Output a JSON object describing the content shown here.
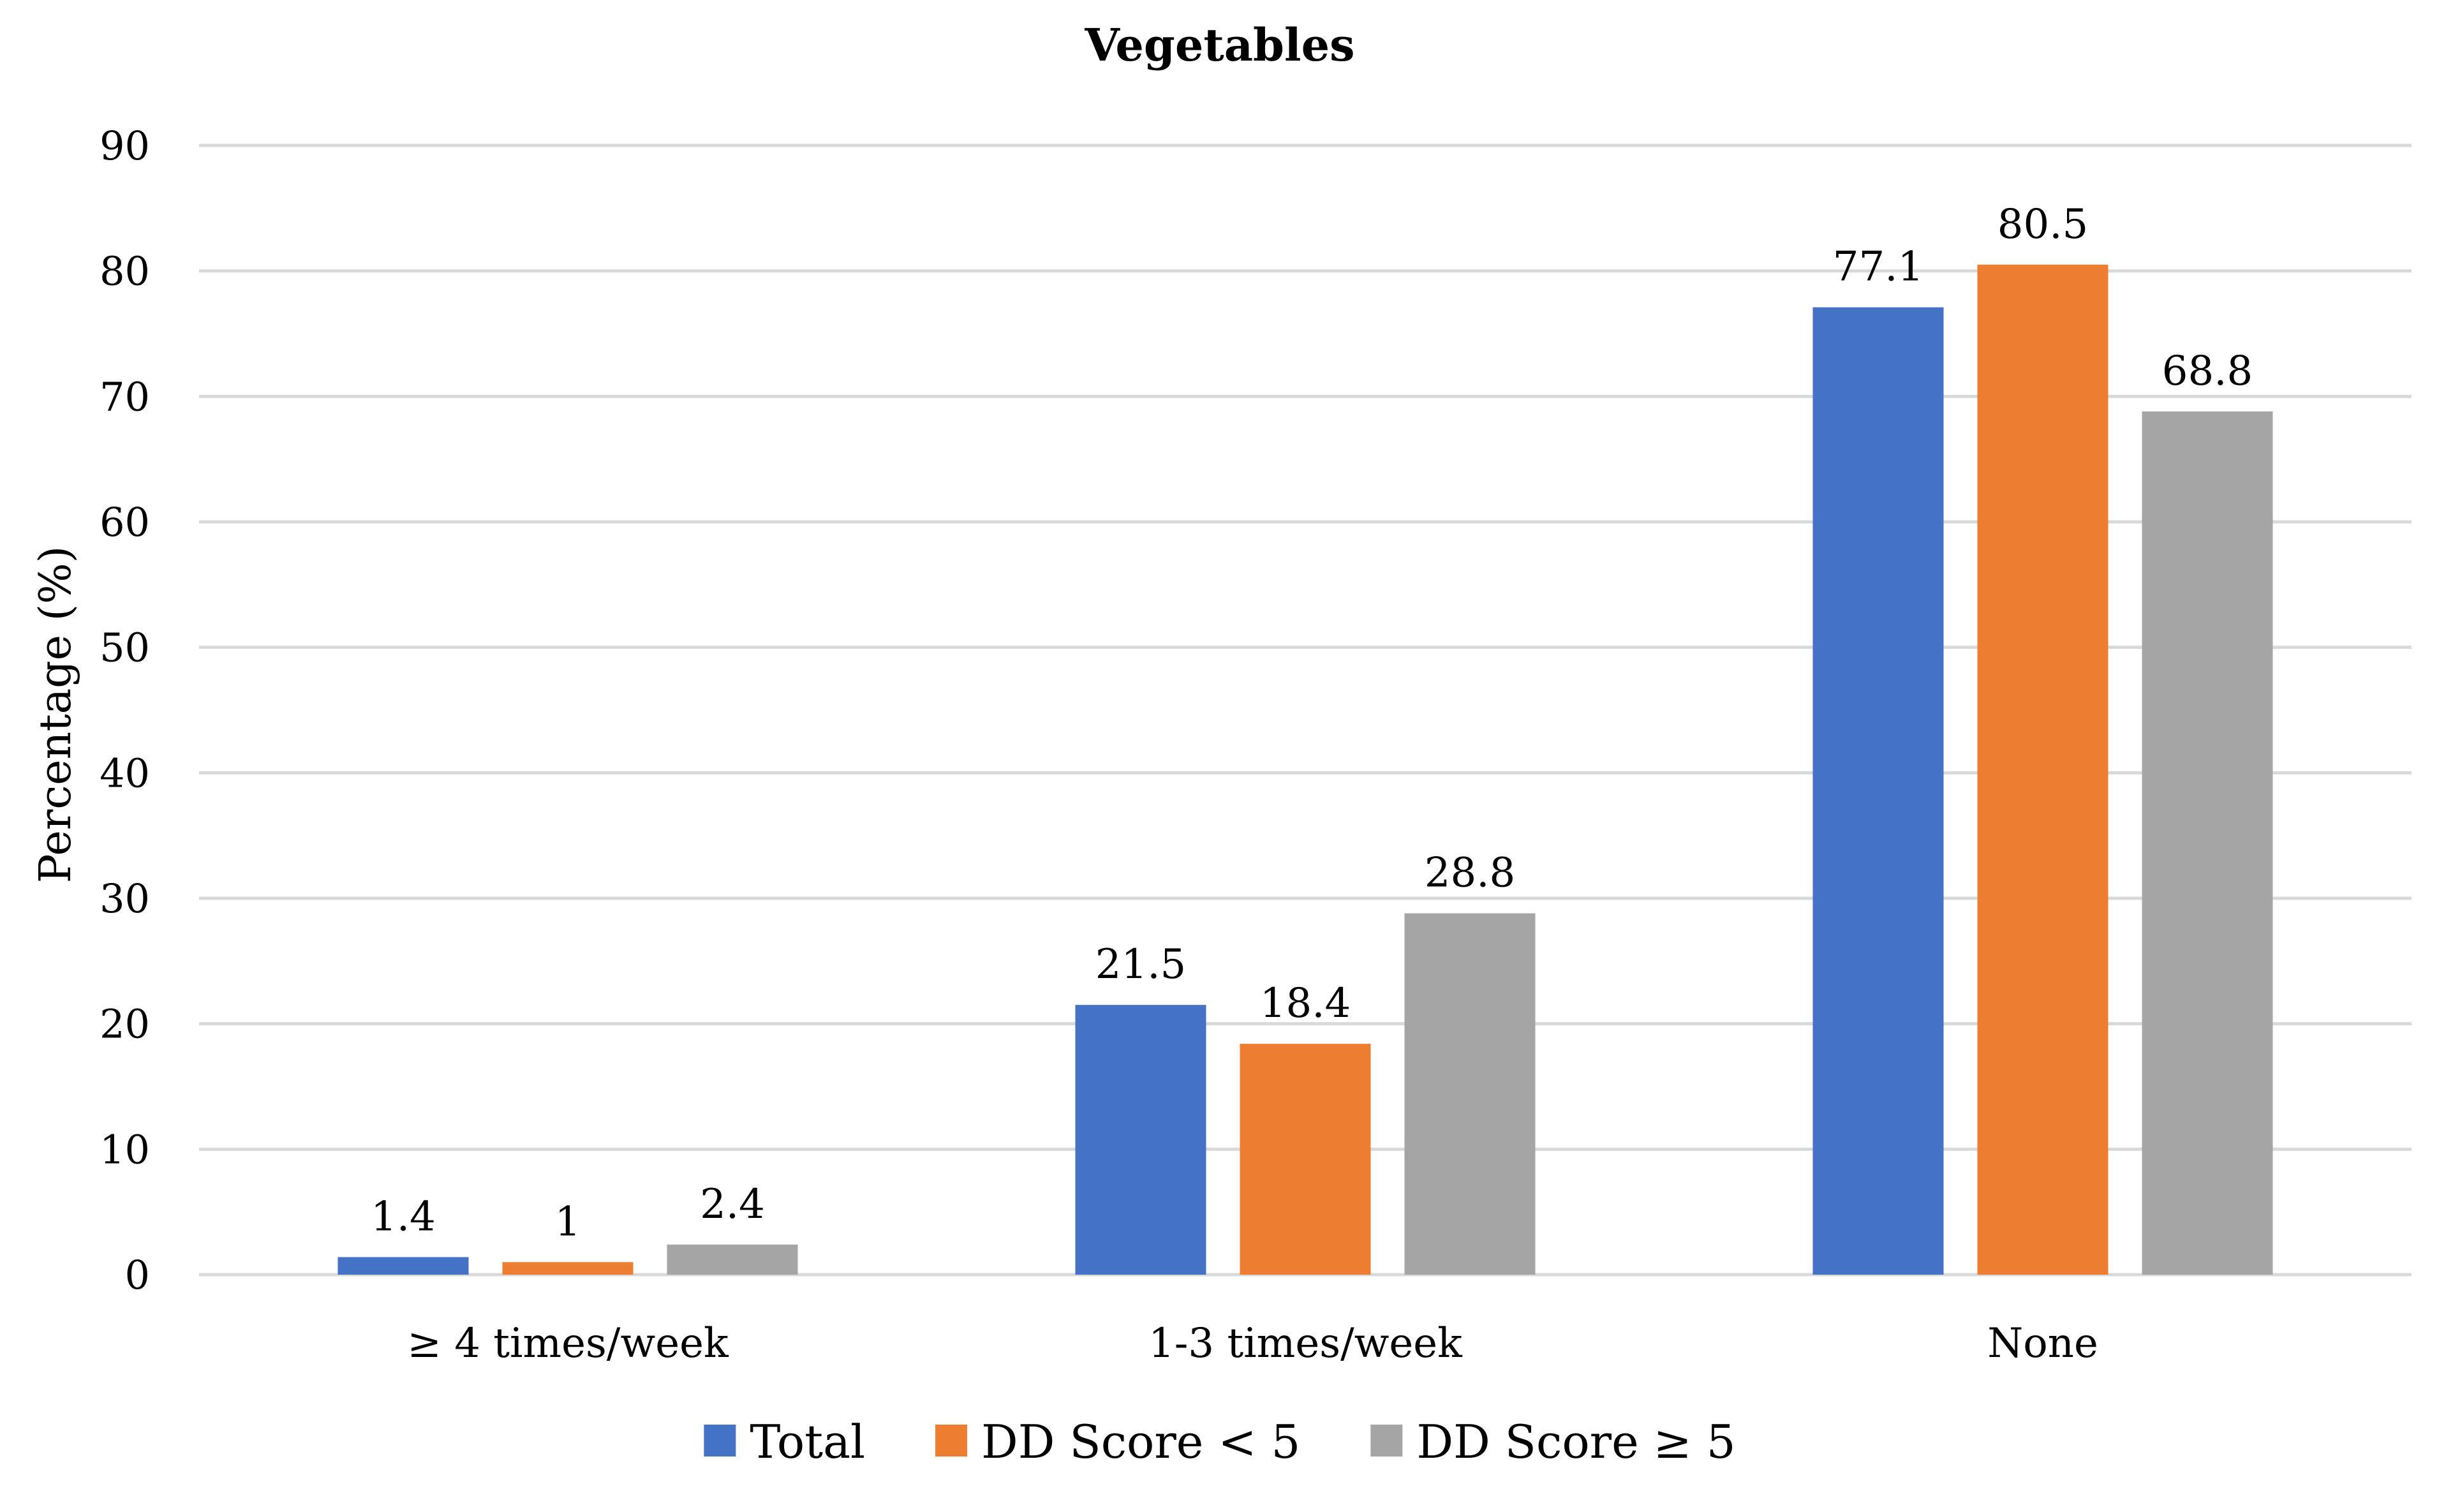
{
  "chart_data": {
    "type": "bar",
    "title": "Vegetables",
    "xlabel": "",
    "ylabel": "Percentage (%)",
    "ylim": [
      0,
      90
    ],
    "yticks": [
      0,
      10,
      20,
      30,
      40,
      50,
      60,
      70,
      80,
      90
    ],
    "grid": true,
    "legend_position": "bottom",
    "categories": [
      "≥ 4 times/week",
      "1-3 times/week",
      "None"
    ],
    "series": [
      {
        "name": "Total",
        "color": "#4472C4",
        "values": [
          1.4,
          21.5,
          77.1
        ],
        "labels": [
          "1.4",
          "21.5",
          "77.1"
        ]
      },
      {
        "name": "DD Score < 5",
        "color": "#ED7D31",
        "values": [
          1,
          18.4,
          80.5
        ],
        "labels": [
          "1",
          "18.4",
          "80.5"
        ]
      },
      {
        "name": "DD Score ≥ 5",
        "color": "#A5A5A5",
        "values": [
          2.4,
          28.8,
          68.8
        ],
        "labels": [
          "2.4",
          "28.8",
          "68.8"
        ]
      }
    ]
  }
}
